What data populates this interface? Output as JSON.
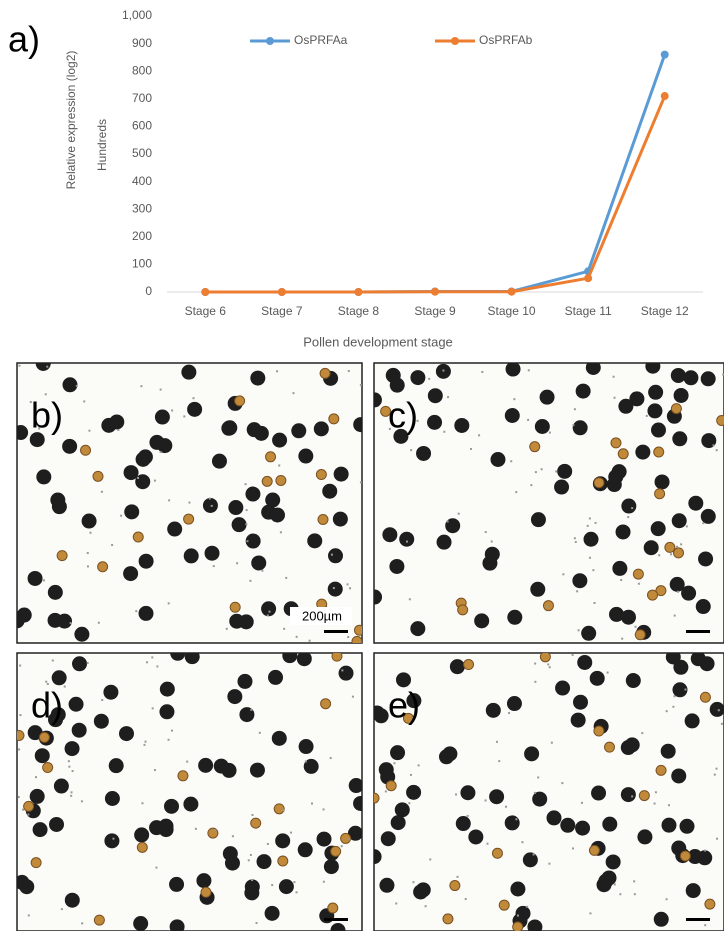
{
  "chart_data": {
    "type": "line",
    "panel_label": "a)",
    "y_label": "Relative expression (log2)",
    "y_unit_label": "Hundreds",
    "x_label": "Pollen development stage",
    "categories": [
      "Stage 6",
      "Stage 7",
      "Stage 8",
      "Stage 9",
      "Stage 10",
      "Stage 11",
      "Stage 12"
    ],
    "series": [
      {
        "name": "OsPRFAa",
        "color": "#5b9bd5",
        "values": [
          0,
          0,
          0,
          2,
          2,
          75,
          860
        ]
      },
      {
        "name": "OsPRFAb",
        "color": "#ed7d31",
        "values": [
          0,
          0,
          0,
          1,
          1,
          50,
          710
        ]
      }
    ],
    "ylim": [
      0,
      1000
    ],
    "yticks": [
      0,
      100,
      200,
      300,
      400,
      500,
      600,
      700,
      800,
      900,
      {
        "value": 1000,
        "label": "1,000"
      }
    ],
    "legend": "top",
    "grid": false
  },
  "panels": [
    {
      "label": "b)",
      "scale_bar": "200µm"
    },
    {
      "label": "c)"
    },
    {
      "label": "d)"
    },
    {
      "label": "e)"
    }
  ]
}
